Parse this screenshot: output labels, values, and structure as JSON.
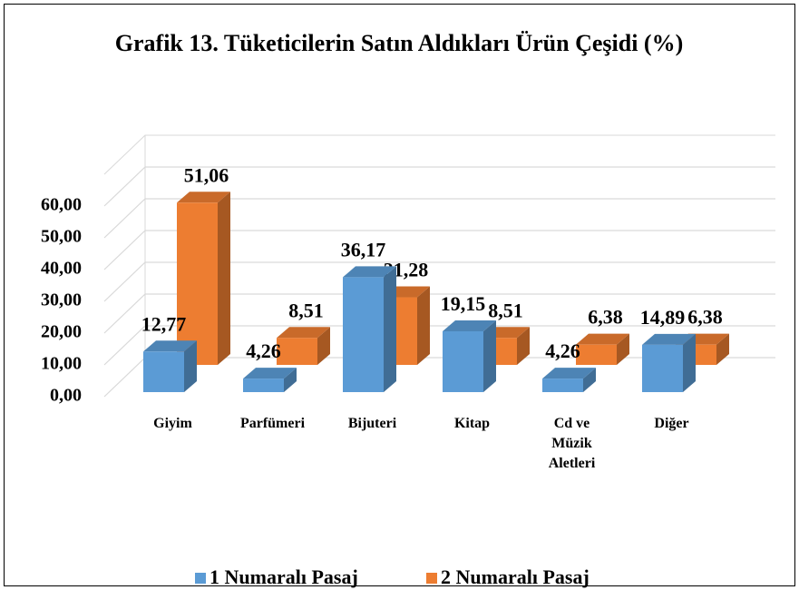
{
  "chart_data": {
    "type": "bar3d",
    "title": "Grafik 13. Tüketicilerin Satın Aldıkları Ürün Çeşidi (%)",
    "categories": [
      "Giyim",
      "Parfümeri",
      "Bijuteri",
      "Kitap",
      "Cd ve Müzik Aletleri",
      "Diğer"
    ],
    "series": [
      {
        "name": "1 Numaralı Pasaj",
        "color": "#5b9bd5",
        "values": [
          12.77,
          4.26,
          36.17,
          19.15,
          4.26,
          14.89
        ],
        "value_labels": [
          "12,77",
          "4,26",
          "36,17",
          "19,15",
          "4,26",
          "14,89"
        ]
      },
      {
        "name": "2 Numaralı Pasaj",
        "color": "#ed7d31",
        "values": [
          51.06,
          8.51,
          21.28,
          8.51,
          6.38,
          6.38
        ],
        "value_labels": [
          "51,06",
          "8,51",
          "21,28",
          "8,51",
          "6,38",
          "6,38"
        ]
      }
    ],
    "ylim": [
      0,
      60
    ],
    "yticks": [
      {
        "value": 0,
        "label": "0,00"
      },
      {
        "value": 10,
        "label": "10,00"
      },
      {
        "value": 20,
        "label": "20,00"
      },
      {
        "value": 30,
        "label": "30,00"
      },
      {
        "value": 40,
        "label": "40,00"
      },
      {
        "value": 50,
        "label": "50,00"
      },
      {
        "value": 60,
        "label": "60,00"
      }
    ],
    "grid": true,
    "legend": "bottom"
  }
}
